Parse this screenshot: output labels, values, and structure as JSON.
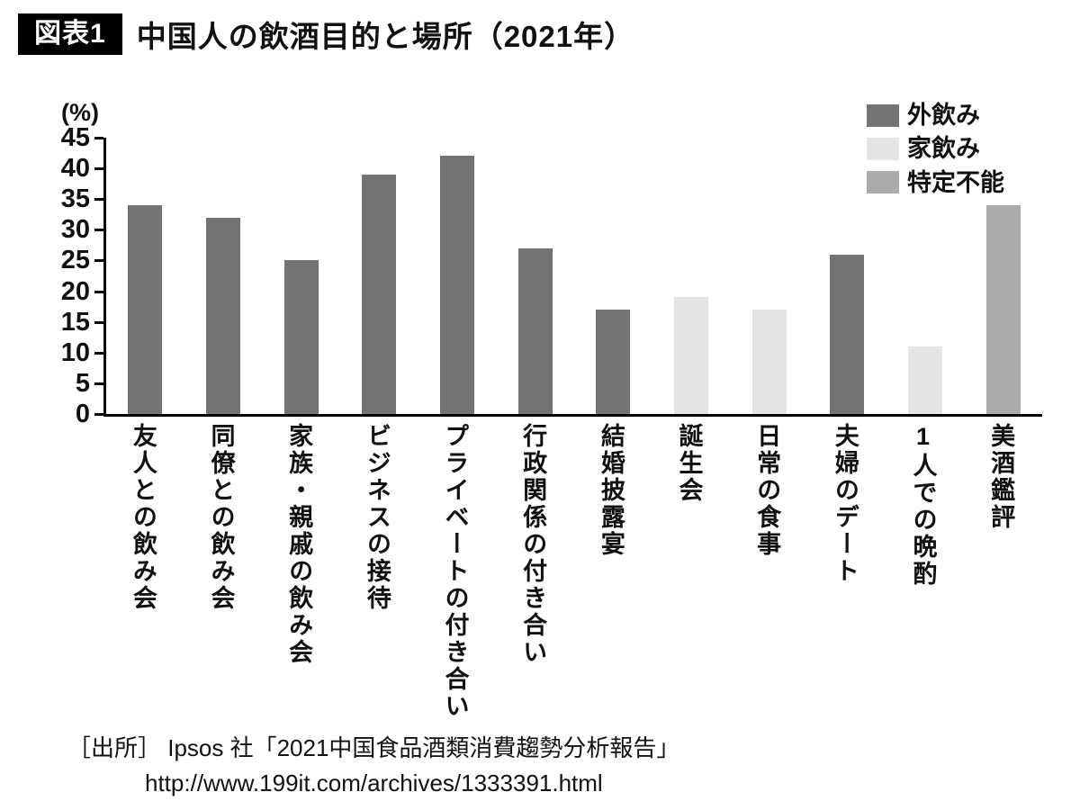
{
  "header": {
    "badge": "図表1",
    "title": "中国人の飲酒目的と場所（2021年）"
  },
  "chart_data": {
    "type": "bar",
    "title": "中国人の飲酒目的と場所（2021年）",
    "unit_label": "(%)",
    "ylim": [
      0,
      45
    ],
    "yticks": [
      0,
      5,
      10,
      15,
      20,
      25,
      30,
      35,
      40,
      45
    ],
    "grid": false,
    "legend_position": "top-right",
    "categories": [
      "友人との飲み会",
      "同僚との飲み会",
      "家族・親戚の飲み会",
      "ビジネスの接待",
      "プライベートの付き合い",
      "行政関係の付き合い",
      "結婚披露宴",
      "誕生会",
      "日常の食事",
      "夫婦のデート",
      "1人での晩酌",
      "美酒鑑評"
    ],
    "values": [
      34,
      32,
      25,
      39,
      42,
      27,
      17,
      19,
      17,
      26,
      11,
      34
    ],
    "bar_series": [
      "out",
      "out",
      "out",
      "out",
      "out",
      "out",
      "out",
      "home",
      "home",
      "out",
      "home",
      "unknown"
    ],
    "legend": [
      {
        "key": "out",
        "label": "外飲み",
        "color": "#737373"
      },
      {
        "key": "home",
        "label": "家飲み",
        "color": "#e4e4e4"
      },
      {
        "key": "unknown",
        "label": "特定不能",
        "color": "#ababab"
      }
    ]
  },
  "source": {
    "line1": "［出所］ Ipsos 社「2021中国食品酒類消費趨勢分析報告」",
    "line2": "http://www.199it.com/archives/1333391.html"
  }
}
